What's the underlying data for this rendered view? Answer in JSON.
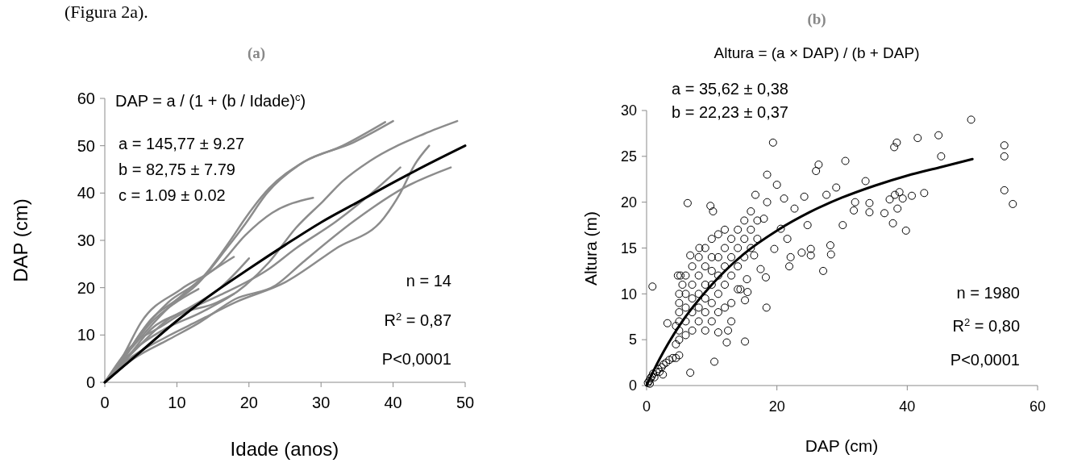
{
  "chart_data": [
    {
      "type": "line",
      "title": "(a)",
      "xlabel": "Idade (anos)",
      "ylabel": "DAP (cm)",
      "xlim": [
        0,
        50
      ],
      "xticks": [
        0,
        10,
        20,
        30,
        40,
        50
      ],
      "ylim": [
        0,
        60
      ],
      "yticks": [
        0,
        10,
        20,
        30,
        40,
        50,
        60
      ],
      "annotations": [
        "DAP = a / (1 + (b / Idade)$^{c}$)",
        "a = 145,77 ± 9.27",
        "b = 82,75 ± 7.79",
        "c = 1.09 ± 0.02",
        "n = 14",
        "R$^{2}$ = 0,87",
        "P<0,0001",
        "(Figura 2a)."
      ],
      "series": [
        {
          "color": "#8c8c8c",
          "x": [
            0,
            2,
            5,
            8.8,
            13.4,
            17.6,
            19.5,
            22.8,
            27.5,
            34.5,
            40
          ],
          "values": [
            0,
            3.5,
            10.5,
            16.9,
            21.9,
            30.4,
            34.7,
            41,
            46.5,
            50.7,
            55.2
          ]
        },
        {
          "color": "#8c8c8c",
          "x": [
            0,
            2,
            5,
            9,
            13,
            17,
            19.5,
            22.5,
            27,
            33,
            38.9
          ],
          "values": [
            0,
            4,
            9.5,
            16,
            21,
            28.5,
            33.5,
            40,
            46,
            50,
            55
          ]
        },
        {
          "color": "#8c8c8c",
          "x": [
            0,
            4.1,
            8,
            13.4,
            19.5,
            22.8,
            26.5,
            30.3,
            33,
            36.8,
            44.3,
            48.9
          ],
          "values": [
            0,
            6.9,
            11,
            14.8,
            20.5,
            25.4,
            32.6,
            38.3,
            42.5,
            46.8,
            52.5,
            55.2
          ]
        },
        {
          "color": "#8c8c8c",
          "x": [
            0,
            3,
            8.8,
            13,
            18.1,
            25.1,
            32.1,
            38.7,
            41,
            43,
            45
          ],
          "values": [
            0,
            4.5,
            9.8,
            13,
            16.9,
            21.2,
            28.3,
            34.7,
            40,
            46,
            50
          ]
        },
        {
          "color": "#8c8c8c",
          "x": [
            0,
            4,
            8.8,
            13,
            18.1,
            23.7,
            27.5,
            34.5,
            41.5,
            48
          ],
          "values": [
            0,
            5,
            9,
            12.5,
            17.6,
            20.5,
            25.4,
            34,
            41.1,
            45.4
          ]
        },
        {
          "color": "#8c8c8c",
          "x": [
            0,
            3,
            6.4,
            11,
            15.8,
            22.8,
            26.5,
            32.1,
            36.8,
            41
          ],
          "values": [
            0,
            5,
            11.2,
            15,
            18.3,
            24,
            28.3,
            34,
            39.7,
            45.4
          ]
        },
        {
          "color": "#8c8c8c",
          "x": [
            0,
            2.5,
            5,
            10.6,
            15.8,
            19.5,
            23.2,
            28.9
          ],
          "values": [
            0,
            5.5,
            12.6,
            19.7,
            24.7,
            31.1,
            35.8,
            39
          ]
        },
        {
          "color": "#8c8c8c",
          "x": [
            0,
            3,
            6.4,
            10,
            13.4,
            17.9
          ],
          "values": [
            0,
            6,
            13.3,
            17.5,
            21.9,
            26.5
          ]
        },
        {
          "color": "#8c8c8c",
          "x": [
            0,
            4,
            8.8,
            12,
            15.8,
            20
          ],
          "values": [
            0,
            6.5,
            13.3,
            16,
            19.7,
            26.2
          ]
        },
        {
          "color": "#8c8c8c",
          "x": [
            0,
            4.1,
            7.5,
            11.1,
            15,
            17.9
          ],
          "values": [
            0,
            8.3,
            11.5,
            14.8,
            16.5,
            18.7
          ]
        },
        {
          "color": "#8c8c8c",
          "x": [
            0,
            3,
            6.4,
            9.5,
            13
          ],
          "values": [
            0,
            6,
            12.6,
            16.5,
            19.7
          ]
        },
        {
          "color": "#000000",
          "x": [
            0,
            5,
            10,
            15,
            20,
            25,
            30,
            35,
            40,
            45,
            50
          ],
          "values": [
            0,
            6.5,
            13,
            18.8,
            24,
            29,
            33.8,
            38,
            42.2,
            46.2,
            50
          ]
        }
      ]
    },
    {
      "type": "scatter",
      "title": "(b)",
      "subtitle": "Altura = (a × DAP) / (b + DAP)",
      "xlabel": "DAP (cm)",
      "ylabel": "Altura (m)",
      "xlim": [
        0,
        60
      ],
      "xticks": [
        0,
        20,
        40,
        60
      ],
      "ylim": [
        0,
        30
      ],
      "yticks": [
        0,
        5,
        10,
        15,
        20,
        25,
        30
      ],
      "annotations": [
        "a = 35,62 ± 0,38",
        "b = 22,23 ± 0,37",
        "n = 1980",
        "R$^{2}$ = 0,80",
        "P<0,0001"
      ],
      "series": [
        {
          "marker": "circle",
          "color": "#000000",
          "x": [
            49.8,
            19.4,
            38,
            38.4,
            41.6,
            44.8,
            45.2,
            54.9,
            54.9,
            54.9,
            56.2,
            30.5,
            26.4,
            26,
            18.5,
            20,
            33.6,
            42.6,
            40.7,
            38.8,
            38.1,
            37.3,
            39.3,
            38.5,
            36.5,
            37.8,
            39.8,
            34.2,
            34.2,
            32,
            31.8,
            29.1,
            27.6,
            30.1,
            27.1,
            28.3,
            28.2,
            25.2,
            25.2,
            23.8,
            22.1,
            21.9,
            18.3,
            18.4,
            6.3,
            9.8,
            10.2,
            0.9,
            6.7,
            10.4,
            12.3,
            15.1,
            15.1,
            6.7,
            8.1,
            16.7,
            18.5,
            21.1,
            22.7,
            24.2,
            18,
            20.6,
            21.6,
            24.7,
            19.6,
            16.5,
            17.5,
            15.4,
            14.4,
            5,
            5,
            5,
            5,
            5,
            5,
            5.5,
            6,
            6,
            6,
            6,
            6,
            7,
            7,
            7,
            7,
            7,
            8,
            8,
            8,
            8,
            8,
            9,
            9,
            9,
            9,
            9,
            10,
            10,
            10,
            10,
            10,
            11,
            11,
            11,
            11,
            12,
            12,
            12,
            12,
            13,
            13,
            13,
            14,
            14,
            14,
            15,
            15,
            15,
            16,
            16,
            16,
            17,
            17,
            4.5,
            4.5,
            4.8,
            5.2,
            9,
            10,
            11,
            12,
            13,
            13,
            12.5,
            11,
            14,
            15.5,
            0.2,
            0.4,
            0.6,
            0.8,
            1,
            1.2,
            1.5,
            1.8,
            2,
            2.3,
            2.6,
            3,
            2.5,
            3.5,
            4,
            4.5,
            5,
            3.2,
            0.5
          ],
          "values": [
            29,
            26.5,
            26,
            26.5,
            27,
            27.3,
            25,
            26.2,
            25,
            21.3,
            19.8,
            24.5,
            24.1,
            23.4,
            23,
            21.9,
            22.3,
            21,
            20.7,
            21.1,
            20.8,
            20.3,
            20.4,
            19.3,
            18.8,
            17.7,
            16.9,
            19.9,
            18.9,
            20,
            19.1,
            21.6,
            20.8,
            17.5,
            12.5,
            14.3,
            15.3,
            14.2,
            14.9,
            14.5,
            14,
            13,
            11.8,
            8.5,
            19.9,
            19.6,
            19,
            10.8,
            1.4,
            2.6,
            4.7,
            4.8,
            9.3,
            14.2,
            15,
            20.8,
            20,
            20.4,
            19.3,
            20.6,
            18.2,
            17.1,
            16,
            17.5,
            14.9,
            14.2,
            12.7,
            11.6,
            10.5,
            5,
            6,
            7,
            8,
            9,
            10,
            11,
            5.5,
            7,
            8.5,
            10,
            12,
            6,
            8,
            9.5,
            11,
            13,
            7,
            8.5,
            10,
            12,
            14,
            8,
            9.5,
            11,
            13,
            15,
            9,
            11,
            12.5,
            14,
            16,
            10,
            12,
            14,
            16.5,
            11,
            13,
            15,
            17,
            12,
            14,
            16,
            13,
            15,
            17,
            14,
            16,
            18,
            15,
            17,
            19,
            16,
            18,
            4.5,
            6.5,
            12,
            12,
            6,
            7,
            8,
            8.5,
            9,
            7,
            6,
            5.8,
            10.5,
            10.2,
            0.3,
            0.5,
            0.8,
            1,
            1.3,
            0.9,
            1.5,
            1.8,
            1.5,
            2,
            2.3,
            2.5,
            1.2,
            2.8,
            3,
            3,
            3.3,
            6.8,
            0.2
          ]
        },
        {
          "type": "line",
          "color": "#000000",
          "x": [
            0,
            1,
            2,
            5,
            10,
            15,
            20,
            25,
            30,
            35,
            40,
            45,
            50
          ],
          "values": [
            0,
            1.5,
            2.9,
            6.5,
            11,
            14.4,
            16.9,
            18.9,
            20.5,
            21.8,
            22.9,
            23.8,
            24.7
          ]
        }
      ]
    }
  ]
}
